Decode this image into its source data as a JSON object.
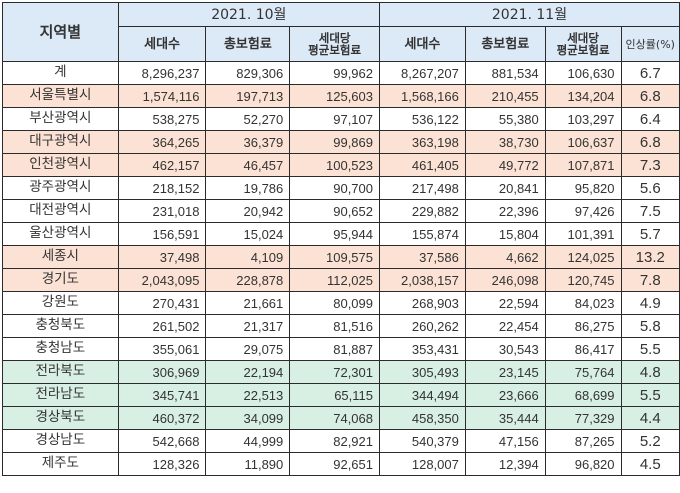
{
  "header": {
    "region": "지역별",
    "period1": "2021. 10월",
    "period2": "2021. 11월",
    "col_households": "세대수",
    "col_premium": "총보험료",
    "col_avg": "세대당\n평균보험료",
    "col_rate": "인상률(%)"
  },
  "colors": {
    "header_bg": "#dce9f6",
    "highlight_orange": "#fbe2d4",
    "highlight_green": "#d8efe3"
  },
  "rows": [
    {
      "region": "계",
      "hh_oct": "8,296,237",
      "prem_oct": "829,306",
      "avg_oct": "99,962",
      "hh_nov": "8,267,207",
      "prem_nov": "881,534",
      "avg_nov": "106,630",
      "rate": "6.7",
      "highlight": "none"
    },
    {
      "region": "서울특별시",
      "hh_oct": "1,574,116",
      "prem_oct": "197,713",
      "avg_oct": "125,603",
      "hh_nov": "1,568,166",
      "prem_nov": "210,455",
      "avg_nov": "134,204",
      "rate": "6.8",
      "highlight": "orange"
    },
    {
      "region": "부산광역시",
      "hh_oct": "538,275",
      "prem_oct": "52,270",
      "avg_oct": "97,107",
      "hh_nov": "536,122",
      "prem_nov": "55,380",
      "avg_nov": "103,297",
      "rate": "6.4",
      "highlight": "none"
    },
    {
      "region": "대구광역시",
      "hh_oct": "364,265",
      "prem_oct": "36,379",
      "avg_oct": "99,869",
      "hh_nov": "363,198",
      "prem_nov": "38,730",
      "avg_nov": "106,637",
      "rate": "6.8",
      "highlight": "orange"
    },
    {
      "region": "인천광역시",
      "hh_oct": "462,157",
      "prem_oct": "46,457",
      "avg_oct": "100,523",
      "hh_nov": "461,405",
      "prem_nov": "49,772",
      "avg_nov": "107,871",
      "rate": "7.3",
      "highlight": "orange"
    },
    {
      "region": "광주광역시",
      "hh_oct": "218,152",
      "prem_oct": "19,786",
      "avg_oct": "90,700",
      "hh_nov": "217,498",
      "prem_nov": "20,841",
      "avg_nov": "95,820",
      "rate": "5.6",
      "highlight": "none"
    },
    {
      "region": "대전광역시",
      "hh_oct": "231,018",
      "prem_oct": "20,942",
      "avg_oct": "90,652",
      "hh_nov": "229,882",
      "prem_nov": "22,396",
      "avg_nov": "97,426",
      "rate": "7.5",
      "highlight": "none"
    },
    {
      "region": "울산광역시",
      "hh_oct": "156,591",
      "prem_oct": "15,024",
      "avg_oct": "95,944",
      "hh_nov": "155,874",
      "prem_nov": "15,804",
      "avg_nov": "101,391",
      "rate": "5.7",
      "highlight": "none"
    },
    {
      "region": "세종시",
      "hh_oct": "37,498",
      "prem_oct": "4,109",
      "avg_oct": "109,575",
      "hh_nov": "37,586",
      "prem_nov": "4,662",
      "avg_nov": "124,025",
      "rate": "13.2",
      "highlight": "orange"
    },
    {
      "region": "경기도",
      "hh_oct": "2,043,095",
      "prem_oct": "228,878",
      "avg_oct": "112,025",
      "hh_nov": "2,038,157",
      "prem_nov": "246,098",
      "avg_nov": "120,745",
      "rate": "7.8",
      "highlight": "orange"
    },
    {
      "region": "강원도",
      "hh_oct": "270,431",
      "prem_oct": "21,661",
      "avg_oct": "80,099",
      "hh_nov": "268,903",
      "prem_nov": "22,594",
      "avg_nov": "84,023",
      "rate": "4.9",
      "highlight": "none"
    },
    {
      "region": "충청북도",
      "hh_oct": "261,502",
      "prem_oct": "21,317",
      "avg_oct": "81,516",
      "hh_nov": "260,262",
      "prem_nov": "22,454",
      "avg_nov": "86,275",
      "rate": "5.8",
      "highlight": "none"
    },
    {
      "region": "충청남도",
      "hh_oct": "355,061",
      "prem_oct": "29,075",
      "avg_oct": "81,887",
      "hh_nov": "353,431",
      "prem_nov": "30,543",
      "avg_nov": "86,417",
      "rate": "5.5",
      "highlight": "none"
    },
    {
      "region": "전라북도",
      "hh_oct": "306,969",
      "prem_oct": "22,194",
      "avg_oct": "72,301",
      "hh_nov": "305,493",
      "prem_nov": "23,145",
      "avg_nov": "75,764",
      "rate": "4.8",
      "highlight": "green"
    },
    {
      "region": "전라남도",
      "hh_oct": "345,741",
      "prem_oct": "22,513",
      "avg_oct": "65,115",
      "hh_nov": "344,494",
      "prem_nov": "23,666",
      "avg_nov": "68,699",
      "rate": "5.5",
      "highlight": "green"
    },
    {
      "region": "경상북도",
      "hh_oct": "460,372",
      "prem_oct": "34,099",
      "avg_oct": "74,068",
      "hh_nov": "458,350",
      "prem_nov": "35,444",
      "avg_nov": "77,329",
      "rate": "4.4",
      "highlight": "green"
    },
    {
      "region": "경상남도",
      "hh_oct": "542,668",
      "prem_oct": "44,999",
      "avg_oct": "82,921",
      "hh_nov": "540,379",
      "prem_nov": "47,156",
      "avg_nov": "87,265",
      "rate": "5.2",
      "highlight": "none"
    },
    {
      "region": "제주도",
      "hh_oct": "128,326",
      "prem_oct": "11,890",
      "avg_oct": "92,651",
      "hh_nov": "128,007",
      "prem_nov": "12,394",
      "avg_nov": "96,820",
      "rate": "4.5",
      "highlight": "none"
    }
  ]
}
